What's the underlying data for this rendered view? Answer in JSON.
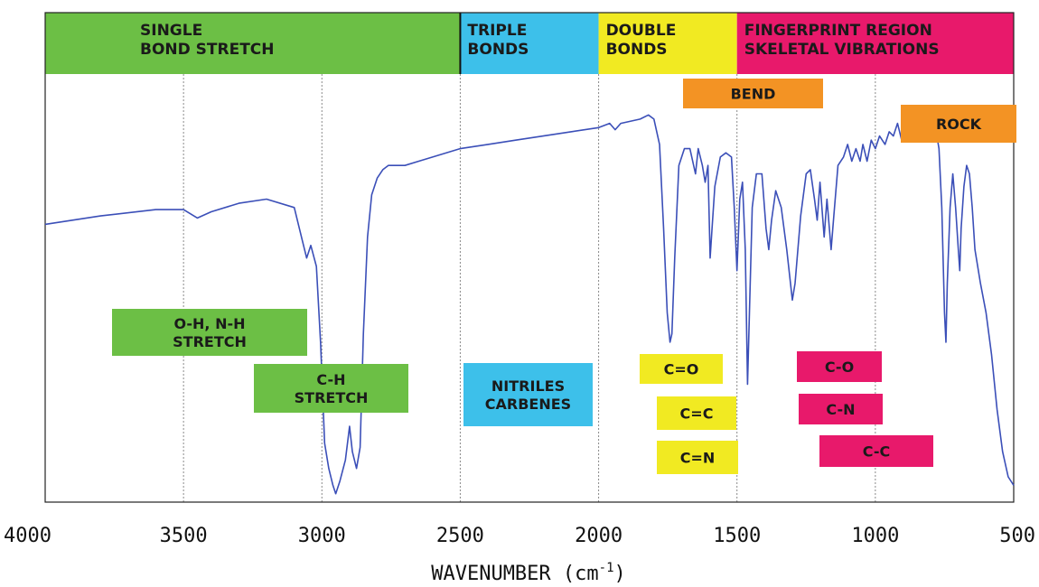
{
  "chart_data": {
    "type": "line",
    "xlabel": "WAVENUMBER (cm",
    "xlabel_sup": "-1",
    "xlabel_close": ")",
    "x_reversed": true,
    "xlim": [
      4000,
      500
    ],
    "ylim": [
      0,
      100
    ],
    "x_ticks": [
      4000,
      3500,
      3000,
      2500,
      2000,
      1500,
      1000,
      500
    ],
    "x_tick_labels": [
      "4000",
      "3500",
      "3000",
      "2500",
      "2000",
      "1500",
      "1000",
      "500"
    ],
    "gridlines_x": [
      3500,
      3000,
      2500,
      2000,
      1500,
      1000
    ],
    "line_color": "#3b4fb8",
    "series": [
      {
        "points": [
          [
            4000,
            66
          ],
          [
            3800,
            68
          ],
          [
            3600,
            69.5
          ],
          [
            3500,
            69.5
          ],
          [
            3450,
            67.5
          ],
          [
            3400,
            69
          ],
          [
            3300,
            71
          ],
          [
            3200,
            72
          ],
          [
            3100,
            70
          ],
          [
            3070,
            62
          ],
          [
            3055,
            58
          ],
          [
            3040,
            61
          ],
          [
            3020,
            56
          ],
          [
            3005,
            38
          ],
          [
            2990,
            14
          ],
          [
            2975,
            8
          ],
          [
            2960,
            4
          ],
          [
            2950,
            2
          ],
          [
            2935,
            5
          ],
          [
            2915,
            10
          ],
          [
            2900,
            18
          ],
          [
            2890,
            12
          ],
          [
            2875,
            8
          ],
          [
            2862,
            13
          ],
          [
            2850,
            40
          ],
          [
            2835,
            63
          ],
          [
            2820,
            73
          ],
          [
            2800,
            77
          ],
          [
            2780,
            79
          ],
          [
            2760,
            80
          ],
          [
            2700,
            80
          ],
          [
            2650,
            81
          ],
          [
            2600,
            82
          ],
          [
            2500,
            84
          ],
          [
            2400,
            85
          ],
          [
            2300,
            86
          ],
          [
            2200,
            87
          ],
          [
            2100,
            88
          ],
          [
            2000,
            89
          ],
          [
            1960,
            90
          ],
          [
            1940,
            88.5
          ],
          [
            1920,
            90
          ],
          [
            1850,
            91
          ],
          [
            1820,
            92
          ],
          [
            1800,
            91
          ],
          [
            1780,
            85
          ],
          [
            1765,
            65
          ],
          [
            1752,
            45
          ],
          [
            1742,
            38
          ],
          [
            1735,
            40
          ],
          [
            1725,
            58
          ],
          [
            1710,
            80
          ],
          [
            1690,
            84
          ],
          [
            1670,
            84
          ],
          [
            1650,
            78
          ],
          [
            1640,
            84
          ],
          [
            1625,
            80
          ],
          [
            1615,
            76
          ],
          [
            1605,
            80
          ],
          [
            1597,
            58
          ],
          [
            1590,
            65
          ],
          [
            1580,
            75
          ],
          [
            1560,
            82
          ],
          [
            1540,
            83
          ],
          [
            1520,
            82
          ],
          [
            1510,
            70
          ],
          [
            1500,
            55
          ],
          [
            1490,
            72
          ],
          [
            1480,
            76
          ],
          [
            1470,
            60
          ],
          [
            1462,
            28
          ],
          [
            1455,
            45
          ],
          [
            1445,
            70
          ],
          [
            1430,
            78
          ],
          [
            1410,
            78
          ],
          [
            1395,
            65
          ],
          [
            1385,
            60
          ],
          [
            1375,
            67
          ],
          [
            1360,
            74
          ],
          [
            1340,
            70
          ],
          [
            1320,
            60
          ],
          [
            1300,
            48
          ],
          [
            1290,
            52
          ],
          [
            1270,
            68
          ],
          [
            1250,
            78
          ],
          [
            1235,
            79
          ],
          [
            1220,
            72
          ],
          [
            1210,
            67
          ],
          [
            1200,
            76
          ],
          [
            1185,
            63
          ],
          [
            1175,
            72
          ],
          [
            1160,
            60
          ],
          [
            1150,
            68
          ],
          [
            1135,
            80
          ],
          [
            1115,
            82
          ],
          [
            1100,
            85
          ],
          [
            1085,
            81
          ],
          [
            1070,
            84
          ],
          [
            1055,
            81
          ],
          [
            1045,
            85
          ],
          [
            1030,
            81
          ],
          [
            1015,
            86
          ],
          [
            1000,
            84
          ],
          [
            985,
            87
          ],
          [
            965,
            85
          ],
          [
            950,
            88
          ],
          [
            935,
            87
          ],
          [
            920,
            90
          ],
          [
            905,
            86
          ],
          [
            890,
            90
          ],
          [
            875,
            89
          ],
          [
            860,
            90
          ],
          [
            840,
            91
          ],
          [
            820,
            92
          ],
          [
            800,
            90
          ],
          [
            780,
            88
          ],
          [
            770,
            84
          ],
          [
            760,
            70
          ],
          [
            750,
            45
          ],
          [
            745,
            38
          ],
          [
            740,
            52
          ],
          [
            730,
            70
          ],
          [
            720,
            78
          ],
          [
            710,
            70
          ],
          [
            700,
            60
          ],
          [
            695,
            55
          ],
          [
            690,
            65
          ],
          [
            680,
            75
          ],
          [
            670,
            80
          ],
          [
            660,
            78
          ],
          [
            650,
            70
          ],
          [
            640,
            60
          ],
          [
            620,
            52
          ],
          [
            600,
            45
          ],
          [
            580,
            35
          ],
          [
            560,
            22
          ],
          [
            540,
            12
          ],
          [
            520,
            6
          ],
          [
            500,
            4
          ]
        ]
      }
    ]
  },
  "bands": [
    {
      "lines": [
        "SINGLE",
        "BOND STRETCH"
      ],
      "color": "#6cbf45",
      "from": 4000,
      "to": 2500
    },
    {
      "lines": [
        "TRIPLE",
        "BONDS"
      ],
      "color": "#3dc0ea",
      "from": 2500,
      "to": 2000
    },
    {
      "lines": [
        "DOUBLE",
        "BONDS"
      ],
      "color": "#f1ea22",
      "from": 2000,
      "to": 1500
    },
    {
      "lines": [
        "FINGERPRINT REGION",
        "SKELETAL VIBRATIONS"
      ],
      "color": "#e8196b",
      "from": 1500,
      "to": 500
    }
  ],
  "labels": [
    {
      "lines": [
        "O-H, N-H",
        "STRETCH"
      ],
      "color": "#6cbf45",
      "name": "label-oh-nh-stretch"
    },
    {
      "lines": [
        "C-H",
        "STRETCH"
      ],
      "color": "#6cbf45",
      "name": "label-ch-stretch"
    },
    {
      "lines": [
        "NITRILES",
        "CARBENES"
      ],
      "color": "#3dc0ea",
      "name": "label-nitriles-carbenes"
    },
    {
      "lines": [
        "C=O"
      ],
      "color": "#f1ea22",
      "name": "label-c-o-double"
    },
    {
      "lines": [
        "C=C"
      ],
      "color": "#f1ea22",
      "name": "label-c-c-double"
    },
    {
      "lines": [
        "C=N"
      ],
      "color": "#f1ea22",
      "name": "label-c-n-double"
    },
    {
      "lines": [
        "BEND"
      ],
      "color": "#f39324",
      "name": "label-bend"
    },
    {
      "lines": [
        "ROCK"
      ],
      "color": "#f39324",
      "name": "label-rock"
    },
    {
      "lines": [
        "C-O"
      ],
      "color": "#e8196b",
      "name": "label-c-o-single"
    },
    {
      "lines": [
        "C-N"
      ],
      "color": "#e8196b",
      "name": "label-c-n-single"
    },
    {
      "lines": [
        "C-C"
      ],
      "color": "#e8196b",
      "name": "label-c-c-single"
    }
  ]
}
